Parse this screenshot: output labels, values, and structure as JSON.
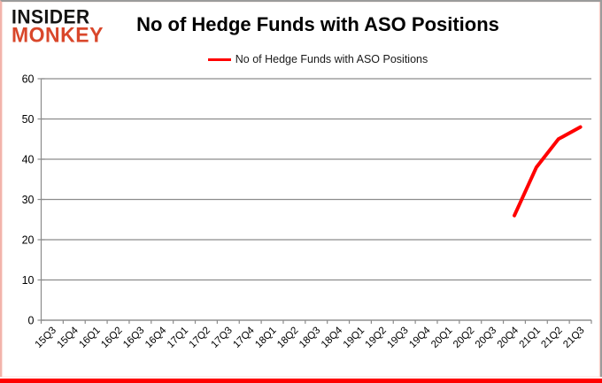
{
  "logo": {
    "line1": "INSIDER",
    "line2": "MONKEY",
    "line1_color": "#151413",
    "line2_color": "#d9472b"
  },
  "header": {
    "title": "No of Hedge Funds with ASO Positions"
  },
  "legend": {
    "label": "No of Hedge Funds with ASO Positions",
    "swatch_color": "#ff0000"
  },
  "chart_data": {
    "type": "line",
    "title": "No of Hedge Funds with ASO Positions",
    "xlabel": "",
    "ylabel": "",
    "categories": [
      "15Q3",
      "15Q4",
      "16Q1",
      "16Q2",
      "16Q3",
      "16Q4",
      "17Q1",
      "17Q2",
      "17Q3",
      "17Q4",
      "18Q1",
      "18Q2",
      "18Q3",
      "18Q4",
      "19Q1",
      "19Q2",
      "19Q3",
      "19Q4",
      "20Q1",
      "20Q2",
      "20Q3",
      "20Q4",
      "21Q1",
      "21Q2",
      "21Q3"
    ],
    "series": [
      {
        "name": "No of Hedge Funds with ASO Positions",
        "color": "#ff0000",
        "values": [
          null,
          null,
          null,
          null,
          null,
          null,
          null,
          null,
          null,
          null,
          null,
          null,
          null,
          null,
          null,
          null,
          null,
          null,
          null,
          null,
          null,
          26,
          38,
          45,
          48
        ]
      }
    ],
    "points_summary": [
      {
        "category": "20Q4",
        "value": 26
      },
      {
        "category": "21Q1",
        "value": 38
      },
      {
        "category": "21Q2",
        "value": 45
      },
      {
        "category": "21Q3",
        "value": 48
      }
    ],
    "ylim": [
      0,
      60
    ],
    "yticks": [
      0,
      10,
      20,
      30,
      40,
      50,
      60
    ],
    "grid": true,
    "gridline_color": "#8c8c8c",
    "axis_color": "#8c8c8c",
    "tick_label_color": "#000000",
    "legend_position": "top-center",
    "line_width": 4
  },
  "frame": {
    "bottom_bar_color": "#ff0000",
    "border_color": "#9b9b9b",
    "side_glow_color": "#f2b3aa"
  }
}
